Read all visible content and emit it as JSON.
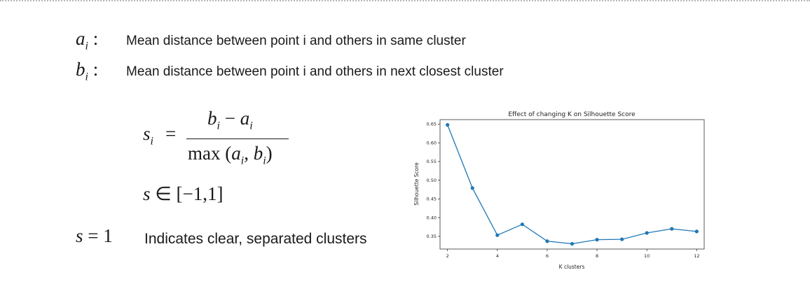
{
  "definitions": [
    {
      "symbol": "a",
      "subscript": "i",
      "separator": ":",
      "text": "Mean distance between point i and others in same cluster"
    },
    {
      "symbol": "b",
      "subscript": "i",
      "separator": ":",
      "text": "Mean distance between point i and others in next closest cluster"
    }
  ],
  "formula": {
    "lhs": "s",
    "lhs_sub": "i",
    "equals": "=",
    "numerator_b": "b",
    "numerator_b_sub": "i",
    "minus": " − ",
    "numerator_a": "a",
    "numerator_a_sub": "i",
    "denominator_prefix": "max (",
    "den_a": "a",
    "den_a_sub": "i",
    "den_comma": ", ",
    "den_b": "b",
    "den_b_sub": "i",
    "den_suffix": ")",
    "range_var": "s",
    "range_rest": " ∈ [−1,1]",
    "one_var": "s",
    "one_rest": " = 1",
    "one_text": "Indicates clear, separated clusters"
  },
  "chart_data": {
    "type": "line",
    "title": "Effect of changing K on Silhouette Score",
    "xlabel": "K clusters",
    "ylabel": "Silhouette Score",
    "x": [
      2,
      3,
      4,
      5,
      6,
      7,
      8,
      9,
      10,
      11,
      12
    ],
    "values": [
      0.648,
      0.479,
      0.353,
      0.382,
      0.337,
      0.33,
      0.341,
      0.342,
      0.359,
      0.37,
      0.363
    ],
    "xlim": [
      1.7,
      12.3
    ],
    "ylim": [
      0.316,
      0.662
    ],
    "xticks": [
      2,
      4,
      6,
      8,
      10,
      12
    ],
    "xtick_labels": [
      "2",
      "4",
      "6",
      "8",
      "10",
      "12"
    ],
    "yticks": [
      0.35,
      0.4,
      0.45,
      0.5,
      0.55,
      0.6,
      0.65
    ],
    "ytick_labels": [
      "0.35",
      "0.40",
      "0.45",
      "0.50",
      "0.55",
      "0.60",
      "0.65"
    ],
    "grid": false,
    "line_color": "#1f77b4"
  }
}
